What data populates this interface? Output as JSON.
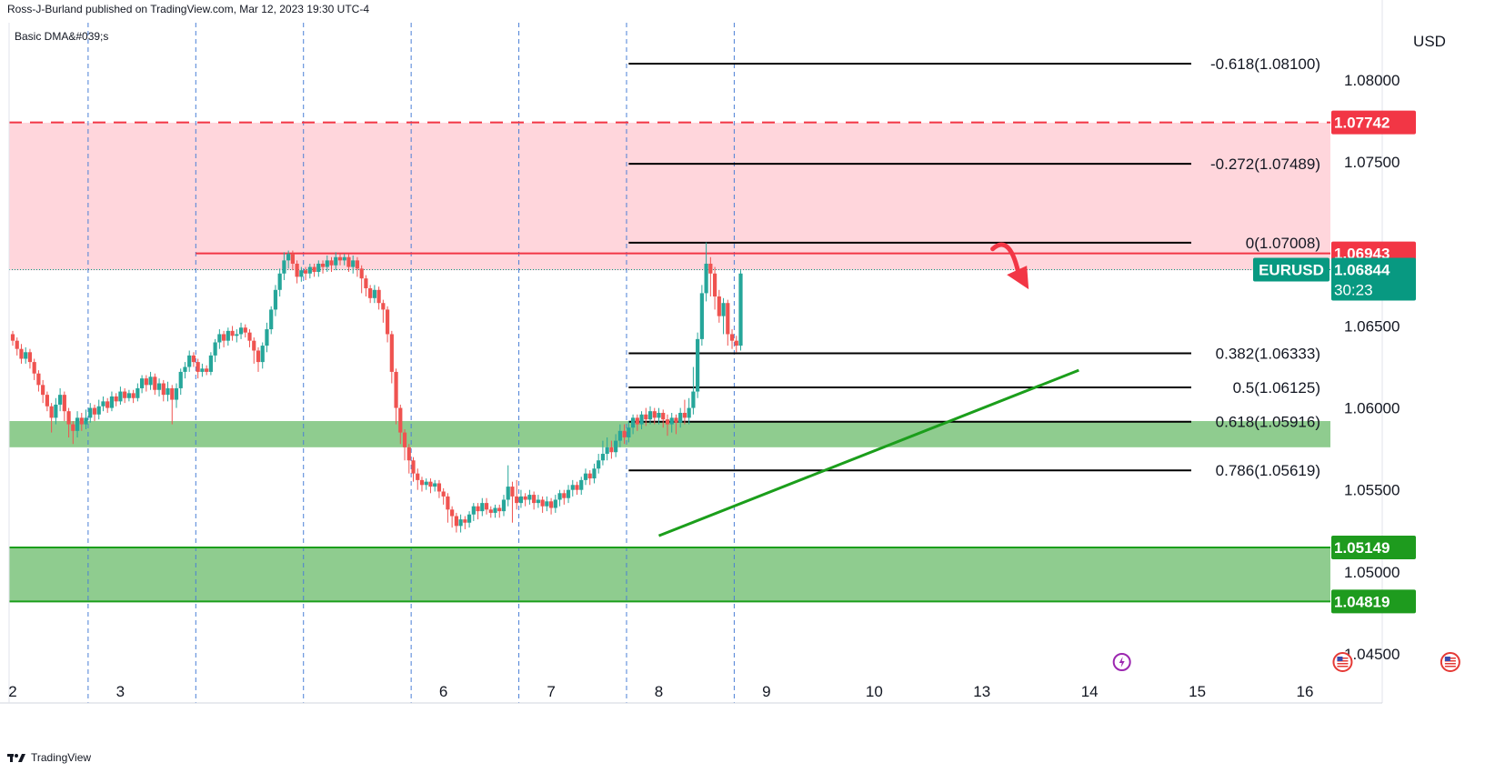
{
  "header": {
    "publisher": "Ross-J-Burland published on TradingView.com, Mar 12, 2023 19:30 UTC-4",
    "indicator": "Basic DMA&#039;s"
  },
  "footer": {
    "brand": "TradingView",
    "logo_icon": "tradingview-logo-icon"
  },
  "colors": {
    "bull": "#26a69a",
    "bear": "#ef5350",
    "resistance_zone": "#ffd6dc",
    "support_zone": "#8fcc8f",
    "trend_line": "#1b9e1b",
    "red_line": "#f23645",
    "green_badge": "#1e9b1e",
    "symbol_badge": "#089981"
  },
  "events": [
    {
      "icon": "lightning-event-icon",
      "day": 12.3
    },
    {
      "icon": "us-flag-event-icon",
      "day": 14.35
    },
    {
      "icon": "us-flag-event-icon",
      "day": 15.35
    }
  ],
  "chart_data": {
    "type": "candlestick",
    "symbol": "EURUSD",
    "currency": "USD",
    "x_axis": {
      "unit": "trading day of March 2023",
      "ticks": [
        {
          "label": "2",
          "day": 2
        },
        {
          "label": "3",
          "day": 3
        },
        {
          "label": "6",
          "day": 6
        },
        {
          "label": "7",
          "day": 7
        },
        {
          "label": "8",
          "day": 8
        },
        {
          "label": "9",
          "day": 9
        },
        {
          "label": "10",
          "day": 10
        },
        {
          "label": "13",
          "day": 11
        },
        {
          "label": "14",
          "day": 12
        },
        {
          "label": "15",
          "day": 13
        },
        {
          "label": "16",
          "day": 14
        }
      ],
      "range": [
        1.98,
        15.25
      ],
      "session_separators": [
        2.7,
        3.7,
        4.7,
        5.7,
        6.7,
        7.7,
        8.7
      ]
    },
    "y_axis": {
      "range": [
        1.042,
        1.0835
      ],
      "ticks": [
        "1.08000",
        "1.07500",
        "1.06500",
        "1.06000",
        "1.05500",
        "1.05000",
        "1.04500"
      ]
    },
    "fibonacci": [
      {
        "label": "-0.618(1.08100)",
        "price": 1.081,
        "x_start": 7.72
      },
      {
        "label": "-0.272(1.07489)",
        "price": 1.07489,
        "x_start": 7.72
      },
      {
        "label": "0(1.07008)",
        "price": 1.07008,
        "x_start": 7.72
      },
      {
        "label": "0.382(1.06333)",
        "price": 1.06333,
        "x_start": 7.72
      },
      {
        "label": "0.5(1.06125)",
        "price": 1.06125,
        "x_start": 7.72
      },
      {
        "label": "0.618(1.05916)",
        "price": 1.05916,
        "x_start": 7.72
      },
      {
        "label": "0.786(1.05619)",
        "price": 1.05619,
        "x_start": 7.72
      }
    ],
    "zones": [
      {
        "kind": "resistance",
        "from": 1.0684,
        "to": 1.0774
      },
      {
        "kind": "support",
        "from": 1.0576,
        "to": 1.0592
      },
      {
        "kind": "support",
        "from": 1.04819,
        "to": 1.05149
      }
    ],
    "levels": [
      {
        "price": 1.07742,
        "label": "1.07742",
        "style": "dashed",
        "color": "red"
      },
      {
        "price": 1.06943,
        "label": "1.06943",
        "style": "solid",
        "color": "red",
        "x_start": 3.7
      },
      {
        "price": 1.05149,
        "label": "1.05149",
        "style": "solid",
        "color": "green"
      },
      {
        "price": 1.04819,
        "label": "1.04819",
        "style": "solid",
        "color": "green"
      }
    ],
    "current_price": {
      "symbol": "EURUSD",
      "value": "1.06844",
      "price": 1.06844,
      "countdown": "30:23"
    },
    "trend_line": {
      "from": {
        "day": 8.0,
        "price": 1.0522
      },
      "to": {
        "day": 11.9,
        "price": 1.0623
      }
    },
    "arrow": {
      "from": {
        "day": 11.1,
        "price": 1.0697
      },
      "to": {
        "day": 11.35,
        "price": 1.0679
      }
    },
    "candles": [
      [
        2.0,
        1.0645,
        1.0641,
        1.0647,
        1.0638
      ],
      [
        2.04,
        1.0641,
        1.0636,
        1.0643,
        1.0632
      ],
      [
        2.08,
        1.0636,
        1.063,
        1.0639,
        1.0627
      ],
      [
        2.12,
        1.063,
        1.0634,
        1.0637,
        1.0627
      ],
      [
        2.16,
        1.0634,
        1.0628,
        1.0636,
        1.0624
      ],
      [
        2.2,
        1.0628,
        1.0621,
        1.063,
        1.0617
      ],
      [
        2.24,
        1.0621,
        1.0614,
        1.0623,
        1.061
      ],
      [
        2.28,
        1.0614,
        1.0608,
        1.0617,
        1.0603
      ],
      [
        2.32,
        1.0608,
        1.0601,
        1.061,
        1.0598
      ],
      [
        2.36,
        1.0601,
        1.0594,
        1.0603,
        1.0585
      ],
      [
        2.4,
        1.0594,
        1.0602,
        1.0606,
        1.059
      ],
      [
        2.44,
        1.0602,
        1.0608,
        1.0612,
        1.0598
      ],
      [
        2.48,
        1.0608,
        1.0598,
        1.061,
        1.0592
      ],
      [
        2.52,
        1.0598,
        1.059,
        1.06,
        1.0582
      ],
      [
        2.56,
        1.059,
        1.0586,
        1.0592,
        1.0578
      ],
      [
        2.6,
        1.0586,
        1.0594,
        1.0598,
        1.0582
      ],
      [
        2.64,
        1.0594,
        1.059,
        1.0597,
        1.0586
      ],
      [
        2.68,
        1.059,
        1.0594,
        1.0599,
        1.0587
      ],
      [
        2.72,
        1.0594,
        1.06,
        1.0603,
        1.0591
      ],
      [
        2.76,
        1.06,
        1.0596,
        1.0602,
        1.0592
      ],
      [
        2.8,
        1.0596,
        1.0601,
        1.0605,
        1.0593
      ],
      [
        2.84,
        1.0601,
        1.0604,
        1.0607,
        1.0598
      ],
      [
        2.88,
        1.0604,
        1.06,
        1.0606,
        1.0597
      ],
      [
        2.92,
        1.06,
        1.0607,
        1.061,
        1.0598
      ],
      [
        2.96,
        1.0607,
        1.0604,
        1.0609,
        1.0601
      ],
      [
        3.0,
        1.0604,
        1.061,
        1.0613,
        1.0602
      ],
      [
        3.04,
        1.061,
        1.0606,
        1.0612,
        1.0603
      ],
      [
        3.08,
        1.0606,
        1.0609,
        1.0611,
        1.0604
      ],
      [
        3.12,
        1.0609,
        1.0606,
        1.0611,
        1.0603
      ],
      [
        3.16,
        1.0606,
        1.0612,
        1.0615,
        1.0604
      ],
      [
        3.2,
        1.0612,
        1.0618,
        1.062,
        1.0609
      ],
      [
        3.24,
        1.0618,
        1.0614,
        1.062,
        1.061
      ],
      [
        3.28,
        1.0614,
        1.0619,
        1.0622,
        1.0611
      ],
      [
        3.32,
        1.0619,
        1.0611,
        1.0621,
        1.0608
      ],
      [
        3.36,
        1.0611,
        1.0615,
        1.0618,
        1.0607
      ],
      [
        3.4,
        1.0615,
        1.0608,
        1.0617,
        1.0604
      ],
      [
        3.44,
        1.0608,
        1.0612,
        1.0616,
        1.0604
      ],
      [
        3.48,
        1.0612,
        1.0605,
        1.0614,
        1.059
      ],
      [
        3.52,
        1.0605,
        1.0612,
        1.0615,
        1.06
      ],
      [
        3.56,
        1.0612,
        1.0622,
        1.0624,
        1.0608
      ],
      [
        3.6,
        1.0622,
        1.0625,
        1.0628,
        1.0618
      ],
      [
        3.64,
        1.0625,
        1.0632,
        1.0635,
        1.0622
      ],
      [
        3.68,
        1.0632,
        1.0628,
        1.0634,
        1.0625
      ],
      [
        3.72,
        1.0628,
        1.0622,
        1.063,
        1.0618
      ],
      [
        3.76,
        1.0622,
        1.0624,
        1.0627,
        1.0619
      ],
      [
        3.8,
        1.0624,
        1.0622,
        1.0626,
        1.062
      ],
      [
        3.84,
        1.0622,
        1.0632,
        1.0634,
        1.062
      ],
      [
        3.88,
        1.0632,
        1.064,
        1.0642,
        1.0628
      ],
      [
        3.92,
        1.064,
        1.0645,
        1.0648,
        1.0636
      ],
      [
        3.96,
        1.0645,
        1.0641,
        1.0647,
        1.0637
      ],
      [
        4.0,
        1.0641,
        1.0647,
        1.0649,
        1.0638
      ],
      [
        4.04,
        1.0647,
        1.0644,
        1.065,
        1.0641
      ],
      [
        4.08,
        1.0644,
        1.0645,
        1.0648,
        1.064
      ],
      [
        4.12,
        1.0645,
        1.0649,
        1.0652,
        1.0642
      ],
      [
        4.16,
        1.0649,
        1.0646,
        1.0651,
        1.0643
      ],
      [
        4.2,
        1.0646,
        1.0641,
        1.0648,
        1.0637
      ],
      [
        4.24,
        1.0641,
        1.0635,
        1.0643,
        1.0627
      ],
      [
        4.28,
        1.0635,
        1.0628,
        1.0637,
        1.0622
      ],
      [
        4.32,
        1.0628,
        1.0638,
        1.064,
        1.0624
      ],
      [
        4.36,
        1.0638,
        1.0648,
        1.0652,
        1.0634
      ],
      [
        4.4,
        1.0648,
        1.066,
        1.0662,
        1.0645
      ],
      [
        4.44,
        1.066,
        1.0672,
        1.0675,
        1.0656
      ],
      [
        4.48,
        1.0672,
        1.0682,
        1.0685,
        1.0668
      ],
      [
        4.52,
        1.0682,
        1.069,
        1.0695,
        1.0678
      ],
      [
        4.56,
        1.069,
        1.0694,
        1.0696,
        1.0685
      ],
      [
        4.6,
        1.0694,
        1.0688,
        1.0696,
        1.0684
      ],
      [
        4.64,
        1.0688,
        1.068,
        1.069,
        1.0676
      ],
      [
        4.68,
        1.068,
        1.0684,
        1.0686,
        1.0677
      ],
      [
        4.72,
        1.0684,
        1.0682,
        1.0686,
        1.0678
      ],
      [
        4.76,
        1.0682,
        1.0686,
        1.0688,
        1.0679
      ],
      [
        4.8,
        1.0686,
        1.0683,
        1.0688,
        1.068
      ],
      [
        4.84,
        1.0683,
        1.0688,
        1.069,
        1.068
      ],
      [
        4.88,
        1.0688,
        1.0686,
        1.069,
        1.0682
      ],
      [
        4.92,
        1.0686,
        1.069,
        1.0693,
        1.0683
      ],
      [
        4.96,
        1.069,
        1.0687,
        1.0692,
        1.0683
      ],
      [
        5.0,
        1.0687,
        1.0692,
        1.0695,
        1.0684
      ],
      [
        5.04,
        1.0692,
        1.069,
        1.0694,
        1.0687
      ],
      [
        5.08,
        1.069,
        1.0692,
        1.0694,
        1.0687
      ],
      [
        5.12,
        1.0692,
        1.0686,
        1.0694,
        1.0683
      ],
      [
        5.16,
        1.0686,
        1.069,
        1.0693,
        1.0682
      ],
      [
        5.2,
        1.069,
        1.0685,
        1.0692,
        1.068
      ],
      [
        5.24,
        1.0685,
        1.0679,
        1.0687,
        1.067
      ],
      [
        5.28,
        1.0679,
        1.0673,
        1.0681,
        1.0668
      ],
      [
        5.32,
        1.0673,
        1.0667,
        1.0675,
        1.0664
      ],
      [
        5.36,
        1.0667,
        1.0672,
        1.0675,
        1.0664
      ],
      [
        5.4,
        1.0672,
        1.0664,
        1.0674,
        1.066
      ],
      [
        5.44,
        1.0664,
        1.066,
        1.0666,
        1.0652
      ],
      [
        5.48,
        1.066,
        1.0645,
        1.0662,
        1.064
      ],
      [
        5.52,
        1.0645,
        1.0622,
        1.0647,
        1.0615
      ],
      [
        5.56,
        1.0622,
        1.06,
        1.0624,
        1.059
      ],
      [
        5.6,
        1.06,
        1.0585,
        1.0602,
        1.0578
      ],
      [
        5.64,
        1.0585,
        1.0576,
        1.0587,
        1.0568
      ],
      [
        5.68,
        1.0576,
        1.0568,
        1.0578,
        1.056
      ],
      [
        5.72,
        1.0568,
        1.056,
        1.057,
        1.0555
      ],
      [
        5.76,
        1.056,
        1.0556,
        1.0563,
        1.055
      ],
      [
        5.8,
        1.0556,
        1.0553,
        1.0558,
        1.0549
      ],
      [
        5.84,
        1.0553,
        1.0555,
        1.0557,
        1.055
      ],
      [
        5.88,
        1.0555,
        1.0552,
        1.0557,
        1.0548
      ],
      [
        5.92,
        1.0552,
        1.0554,
        1.0556,
        1.0549
      ],
      [
        5.96,
        1.0554,
        1.0549,
        1.0556,
        1.0545
      ],
      [
        6.0,
        1.0549,
        1.0546,
        1.0551,
        1.0541
      ],
      [
        6.04,
        1.0546,
        1.0538,
        1.0548,
        1.053
      ],
      [
        6.08,
        1.0538,
        1.0534,
        1.054,
        1.0527
      ],
      [
        6.12,
        1.0534,
        1.0528,
        1.0536,
        1.0524
      ],
      [
        6.16,
        1.0528,
        1.0532,
        1.0535,
        1.0524
      ],
      [
        6.2,
        1.0532,
        1.053,
        1.0534,
        1.0526
      ],
      [
        6.24,
        1.053,
        1.0535,
        1.0537,
        1.0527
      ],
      [
        6.28,
        1.0535,
        1.054,
        1.0542,
        1.0531
      ],
      [
        6.32,
        1.054,
        1.0537,
        1.0542,
        1.0532
      ],
      [
        6.36,
        1.0537,
        1.0542,
        1.0545,
        1.0534
      ],
      [
        6.4,
        1.0542,
        1.0538,
        1.0545,
        1.0535
      ],
      [
        6.44,
        1.0538,
        1.0536,
        1.054,
        1.0533
      ],
      [
        6.48,
        1.0536,
        1.0539,
        1.0541,
        1.0533
      ],
      [
        6.52,
        1.0539,
        1.0537,
        1.0541,
        1.0533
      ],
      [
        6.56,
        1.0537,
        1.0544,
        1.0547,
        1.0534
      ],
      [
        6.6,
        1.0544,
        1.0552,
        1.0565,
        1.054
      ],
      [
        6.64,
        1.0552,
        1.0546,
        1.0555,
        1.053
      ],
      [
        6.68,
        1.0546,
        1.0542,
        1.0556,
        1.0538
      ],
      [
        6.72,
        1.0542,
        1.0546,
        1.055,
        1.0539
      ],
      [
        6.76,
        1.0546,
        1.0544,
        1.0548,
        1.054
      ],
      [
        6.8,
        1.0544,
        1.0547,
        1.055,
        1.0541
      ],
      [
        6.84,
        1.0547,
        1.0542,
        1.0549,
        1.0538
      ],
      [
        6.88,
        1.0542,
        1.0544,
        1.0547,
        1.0539
      ],
      [
        6.92,
        1.0544,
        1.054,
        1.0546,
        1.0536
      ],
      [
        6.96,
        1.054,
        1.0543,
        1.0546,
        1.0537
      ],
      [
        7.0,
        1.0543,
        1.0539,
        1.0545,
        1.0535
      ],
      [
        7.04,
        1.0539,
        1.0544,
        1.0547,
        1.0536
      ],
      [
        7.08,
        1.0544,
        1.0548,
        1.055,
        1.054
      ],
      [
        7.12,
        1.0548,
        1.0545,
        1.055,
        1.0541
      ],
      [
        7.16,
        1.0545,
        1.055,
        1.0553,
        1.0542
      ],
      [
        7.2,
        1.055,
        1.0553,
        1.0556,
        1.0546
      ],
      [
        7.24,
        1.0553,
        1.055,
        1.0555,
        1.0547
      ],
      [
        7.28,
        1.055,
        1.0556,
        1.0558,
        1.0547
      ],
      [
        7.32,
        1.0556,
        1.056,
        1.0563,
        1.0553
      ],
      [
        7.36,
        1.056,
        1.0557,
        1.0562,
        1.0553
      ],
      [
        7.4,
        1.0557,
        1.0563,
        1.0566,
        1.0554
      ],
      [
        7.44,
        1.0563,
        1.0568,
        1.0572,
        1.056
      ],
      [
        7.48,
        1.0568,
        1.0572,
        1.058,
        1.0565
      ],
      [
        7.52,
        1.0572,
        1.0576,
        1.0582,
        1.0568
      ],
      [
        7.56,
        1.0576,
        1.0573,
        1.058,
        1.0569
      ],
      [
        7.6,
        1.0573,
        1.058,
        1.0584,
        1.057
      ],
      [
        7.64,
        1.058,
        1.0586,
        1.059,
        1.0576
      ],
      [
        7.68,
        1.0586,
        1.0582,
        1.059,
        1.0578
      ],
      [
        7.72,
        1.0582,
        1.0588,
        1.0592,
        1.0579
      ],
      [
        7.76,
        1.0588,
        1.0594,
        1.0596,
        1.0584
      ],
      [
        7.8,
        1.0594,
        1.059,
        1.0596,
        1.0586
      ],
      [
        7.84,
        1.059,
        1.0596,
        1.0598,
        1.0587
      ],
      [
        7.88,
        1.0596,
        1.0593,
        1.06,
        1.0589
      ],
      [
        7.92,
        1.0593,
        1.0598,
        1.0601,
        1.059
      ],
      [
        7.96,
        1.0598,
        1.0594,
        1.06,
        1.059
      ],
      [
        8.0,
        1.0594,
        1.0597,
        1.06,
        1.059
      ],
      [
        8.04,
        1.0597,
        1.0593,
        1.0599,
        1.0588
      ],
      [
        8.08,
        1.0593,
        1.059,
        1.0596,
        1.0583
      ],
      [
        8.12,
        1.059,
        1.0594,
        1.0597,
        1.0585
      ],
      [
        8.16,
        1.0594,
        1.0591,
        1.0596,
        1.0584
      ],
      [
        8.2,
        1.0591,
        1.0597,
        1.06,
        1.0588
      ],
      [
        8.24,
        1.0597,
        1.0594,
        1.0605,
        1.059
      ],
      [
        8.28,
        1.0594,
        1.06,
        1.0606,
        1.059
      ],
      [
        8.32,
        1.06,
        1.061,
        1.0625,
        1.0596
      ],
      [
        8.36,
        1.061,
        1.0642,
        1.0646,
        1.0606
      ],
      [
        8.4,
        1.0642,
        1.067,
        1.0675,
        1.0638
      ],
      [
        8.44,
        1.067,
        1.0688,
        1.0701,
        1.0665
      ],
      [
        8.48,
        1.0688,
        1.0682,
        1.0692,
        1.0668
      ],
      [
        8.52,
        1.0682,
        1.0668,
        1.0686,
        1.066
      ],
      [
        8.56,
        1.0668,
        1.0656,
        1.0672,
        1.0652
      ],
      [
        8.6,
        1.0656,
        1.0664,
        1.0667,
        1.0645
      ],
      [
        8.64,
        1.0664,
        1.0645,
        1.0666,
        1.0638
      ],
      [
        8.68,
        1.0645,
        1.0641,
        1.0648,
        1.0636
      ],
      [
        8.72,
        1.0641,
        1.0638,
        1.0644,
        1.0634
      ],
      [
        8.76,
        1.0638,
        1.0682,
        1.0684,
        1.0635
      ]
    ]
  }
}
